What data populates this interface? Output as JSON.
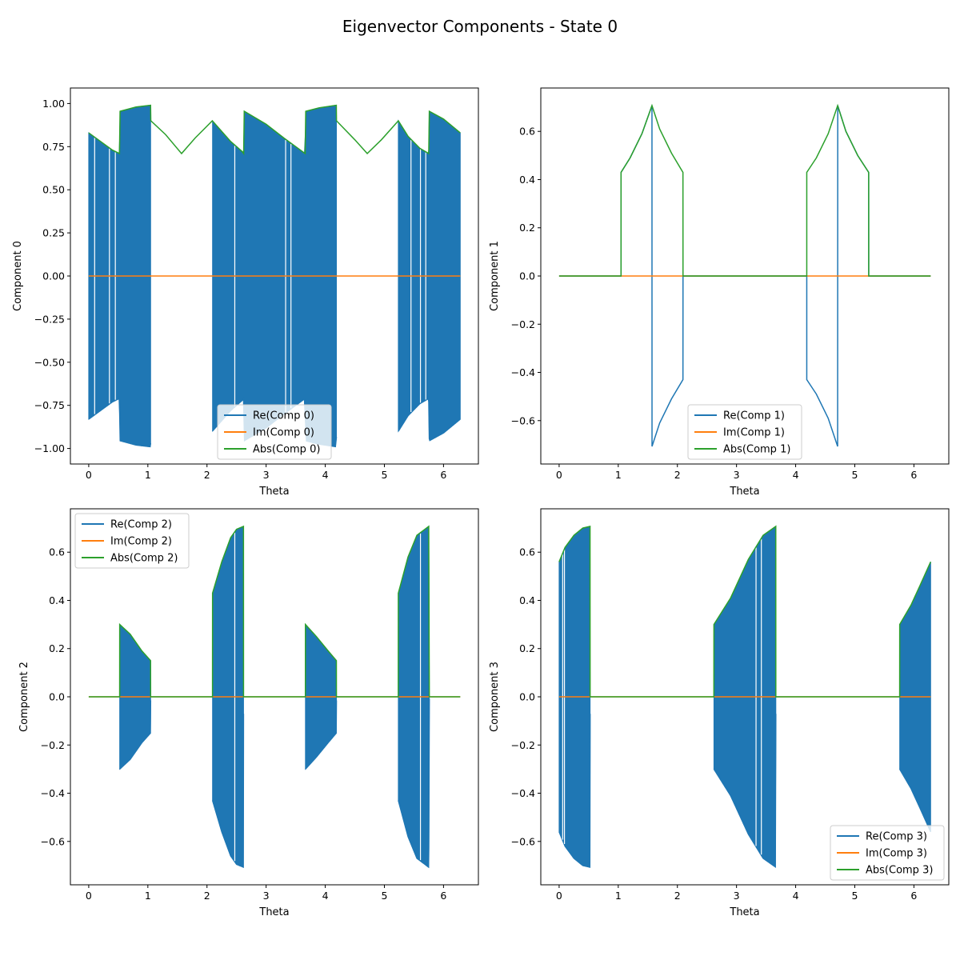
{
  "figure": {
    "title": "Eigenvector Components - State 0"
  },
  "chart_data": [
    {
      "type": "line",
      "panel": "top-left",
      "xlabel": "Theta",
      "ylabel": "Component 0",
      "xlim": [
        -0.31,
        6.59
      ],
      "ylim": [
        -1.09,
        1.09
      ],
      "xticks": [
        0,
        1,
        2,
        3,
        4,
        5,
        6
      ],
      "yticks": [
        -1.0,
        -0.75,
        -0.5,
        -0.25,
        0.0,
        0.25,
        0.5,
        0.75,
        1.0
      ],
      "ytick_labels": [
        "−1.00",
        "−0.75",
        "−0.50",
        "−0.25",
        "0.00",
        "0.25",
        "0.50",
        "0.75",
        "1.00"
      ],
      "legend_loc": "lower-center",
      "legend": [
        "Re(Comp 0)",
        "Im(Comp 0)",
        "Abs(Comp 0)"
      ],
      "series_colors": [
        "#1f77b4",
        "#ff7f0e",
        "#2ca02c"
      ],
      "abs_points": [
        [
          0.0,
          0.83
        ],
        [
          0.2,
          0.78
        ],
        [
          0.4,
          0.73
        ],
        [
          0.52,
          0.71
        ],
        [
          0.53,
          0.955
        ],
        [
          0.8,
          0.98
        ],
        [
          1.046,
          0.99
        ],
        [
          1.05,
          0.9
        ],
        [
          1.3,
          0.82
        ],
        [
          1.57,
          0.71
        ],
        [
          1.8,
          0.8
        ],
        [
          2.09,
          0.9
        ],
        [
          2.4,
          0.78
        ],
        [
          2.6,
          0.72
        ],
        [
          2.62,
          0.71
        ],
        [
          2.63,
          0.955
        ],
        [
          3.0,
          0.88
        ],
        [
          3.3,
          0.8
        ],
        [
          3.66,
          0.71
        ],
        [
          3.67,
          0.955
        ],
        [
          3.9,
          0.975
        ],
        [
          4.187,
          0.99
        ],
        [
          4.19,
          0.9
        ],
        [
          4.5,
          0.79
        ],
        [
          4.71,
          0.71
        ],
        [
          4.95,
          0.79
        ],
        [
          5.236,
          0.9
        ],
        [
          5.4,
          0.81
        ],
        [
          5.6,
          0.74
        ],
        [
          5.75,
          0.71
        ],
        [
          5.76,
          0.955
        ],
        [
          6.0,
          0.91
        ],
        [
          6.283,
          0.83
        ]
      ],
      "re_fill_ranges": [
        [
          0,
          1.047
        ],
        [
          2.094,
          4.189
        ],
        [
          5.236,
          6.283
        ]
      ],
      "re_gaps": [
        0.1,
        0.35,
        0.45,
        2.47,
        3.33,
        3.42,
        5.45,
        5.61,
        5.7
      ],
      "im_values": {
        "x": [
          0,
          6.283
        ],
        "y": [
          0,
          0
        ]
      }
    },
    {
      "type": "line",
      "panel": "top-right",
      "xlabel": "Theta",
      "ylabel": "Component 1",
      "xlim": [
        -0.31,
        6.59
      ],
      "ylim": [
        -0.78,
        0.78
      ],
      "xticks": [
        0,
        1,
        2,
        3,
        4,
        5,
        6
      ],
      "yticks": [
        -0.6,
        -0.4,
        -0.2,
        0.0,
        0.2,
        0.4,
        0.6
      ],
      "ytick_labels": [
        "−0.6",
        "−0.4",
        "−0.2",
        "0.0",
        "0.2",
        "0.4",
        "0.6"
      ],
      "legend_loc": "lower-center",
      "legend": [
        "Re(Comp 1)",
        "Im(Comp 1)",
        "Abs(Comp 1)"
      ],
      "series_colors": [
        "#1f77b4",
        "#ff7f0e",
        "#2ca02c"
      ],
      "re_points": [
        [
          0,
          0
        ],
        [
          1.047,
          0
        ],
        [
          1.047,
          0.43
        ],
        [
          1.2,
          0.49
        ],
        [
          1.4,
          0.59
        ],
        [
          1.57,
          0.707
        ],
        [
          1.571,
          -0.707
        ],
        [
          1.7,
          -0.61
        ],
        [
          1.9,
          -0.51
        ],
        [
          2.094,
          -0.43
        ],
        [
          2.095,
          0
        ],
        [
          4.188,
          0
        ],
        [
          4.188,
          -0.43
        ],
        [
          4.35,
          -0.49
        ],
        [
          4.55,
          -0.59
        ],
        [
          4.71,
          -0.707
        ],
        [
          4.712,
          0.707
        ],
        [
          4.85,
          0.6
        ],
        [
          5.05,
          0.5
        ],
        [
          5.235,
          0.43
        ],
        [
          5.236,
          0
        ],
        [
          6.283,
          0
        ]
      ],
      "abs_points": [
        [
          0,
          0
        ],
        [
          1.047,
          0
        ],
        [
          1.047,
          0.43
        ],
        [
          1.2,
          0.49
        ],
        [
          1.4,
          0.59
        ],
        [
          1.57,
          0.707
        ],
        [
          1.7,
          0.61
        ],
        [
          1.9,
          0.51
        ],
        [
          2.094,
          0.43
        ],
        [
          2.095,
          0
        ],
        [
          4.188,
          0
        ],
        [
          4.188,
          0.43
        ],
        [
          4.35,
          0.49
        ],
        [
          4.55,
          0.59
        ],
        [
          4.71,
          0.707
        ],
        [
          4.85,
          0.6
        ],
        [
          5.05,
          0.5
        ],
        [
          5.235,
          0.43
        ],
        [
          5.236,
          0
        ],
        [
          6.283,
          0
        ]
      ],
      "im_values": {
        "x": [
          0,
          6.283
        ],
        "y": [
          0,
          0
        ]
      }
    },
    {
      "type": "line",
      "panel": "bottom-left",
      "xlabel": "Theta",
      "ylabel": "Component 2",
      "xlim": [
        -0.31,
        6.59
      ],
      "ylim": [
        -0.78,
        0.78
      ],
      "xticks": [
        0,
        1,
        2,
        3,
        4,
        5,
        6
      ],
      "yticks": [
        -0.6,
        -0.4,
        -0.2,
        0.0,
        0.2,
        0.4,
        0.6
      ],
      "ytick_labels": [
        "−0.6",
        "−0.4",
        "−0.2",
        "0.0",
        "0.2",
        "0.4",
        "0.6"
      ],
      "legend_loc": "upper-left",
      "legend": [
        "Re(Comp 2)",
        "Im(Comp 2)",
        "Abs(Comp 2)"
      ],
      "series_colors": [
        "#1f77b4",
        "#ff7f0e",
        "#2ca02c"
      ],
      "abs_points": [
        [
          0,
          0
        ],
        [
          0.523,
          0
        ],
        [
          0.524,
          0.3
        ],
        [
          0.7,
          0.26
        ],
        [
          0.9,
          0.19
        ],
        [
          1.046,
          0.15
        ],
        [
          1.047,
          0
        ],
        [
          2.093,
          0
        ],
        [
          2.094,
          0.43
        ],
        [
          2.25,
          0.56
        ],
        [
          2.4,
          0.66
        ],
        [
          2.5,
          0.695
        ],
        [
          2.617,
          0.707
        ],
        [
          2.618,
          0
        ],
        [
          3.664,
          0
        ],
        [
          3.665,
          0.3
        ],
        [
          3.85,
          0.25
        ],
        [
          4.05,
          0.19
        ],
        [
          4.188,
          0.15
        ],
        [
          4.189,
          0
        ],
        [
          5.235,
          0
        ],
        [
          5.236,
          0.43
        ],
        [
          5.4,
          0.58
        ],
        [
          5.55,
          0.67
        ],
        [
          5.75,
          0.707
        ],
        [
          5.76,
          0
        ],
        [
          6.283,
          0
        ]
      ],
      "re_fill_ranges": [
        [
          0.524,
          1.047
        ],
        [
          2.094,
          2.618
        ],
        [
          3.665,
          4.189
        ],
        [
          5.236,
          5.76
        ]
      ],
      "re_gaps": [
        2.47,
        5.61
      ],
      "im_values": {
        "x": [
          0,
          6.283
        ],
        "y": [
          0,
          0
        ]
      }
    },
    {
      "type": "line",
      "panel": "bottom-right",
      "xlabel": "Theta",
      "ylabel": "Component 3",
      "xlim": [
        -0.31,
        6.59
      ],
      "ylim": [
        -0.78,
        0.78
      ],
      "xticks": [
        0,
        1,
        2,
        3,
        4,
        5,
        6
      ],
      "yticks": [
        -0.6,
        -0.4,
        -0.2,
        0.0,
        0.2,
        0.4,
        0.6
      ],
      "ytick_labels": [
        "−0.6",
        "−0.4",
        "−0.2",
        "0.0",
        "0.2",
        "0.4",
        "0.6"
      ],
      "legend_loc": "lower-right",
      "legend": [
        "Re(Comp 3)",
        "Im(Comp 3)",
        "Abs(Comp 3)"
      ],
      "series_colors": [
        "#1f77b4",
        "#ff7f0e",
        "#2ca02c"
      ],
      "abs_points": [
        [
          0,
          0.56
        ],
        [
          0.1,
          0.62
        ],
        [
          0.25,
          0.67
        ],
        [
          0.4,
          0.7
        ],
        [
          0.523,
          0.707
        ],
        [
          0.524,
          0
        ],
        [
          2.617,
          0
        ],
        [
          2.618,
          0.3
        ],
        [
          2.9,
          0.41
        ],
        [
          3.2,
          0.57
        ],
        [
          3.45,
          0.67
        ],
        [
          3.664,
          0.707
        ],
        [
          3.665,
          0
        ],
        [
          5.759,
          0
        ],
        [
          5.76,
          0.3
        ],
        [
          5.95,
          0.38
        ],
        [
          6.1,
          0.46
        ],
        [
          6.283,
          0.56
        ]
      ],
      "re_fill_ranges": [
        [
          0,
          0.524
        ],
        [
          2.618,
          3.665
        ],
        [
          5.76,
          6.283
        ]
      ],
      "re_gaps": [
        0.06,
        0.09,
        3.33,
        3.42
      ],
      "im_values": {
        "x": [
          0,
          6.283
        ],
        "y": [
          0,
          0
        ]
      }
    }
  ]
}
